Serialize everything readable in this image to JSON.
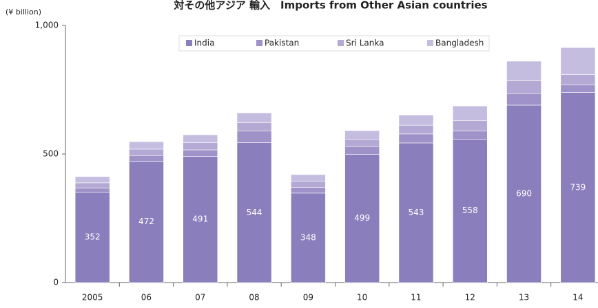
{
  "chart_data": {
    "type": "stacked_bar",
    "title": "対その他アジア 輸入　Imports from Other Asian countries",
    "y_label": "(¥ billion)",
    "categories": [
      "2005",
      "06",
      "07",
      "08",
      "09",
      "10",
      "11",
      "12",
      "13",
      "14"
    ],
    "series": [
      {
        "name": "India",
        "color": "#8b7ebc",
        "labels": true,
        "values": [
          352,
          472,
          491,
          544,
          348,
          499,
          543,
          558,
          690,
          739
        ]
      },
      {
        "name": "Pakistan",
        "color": "#9e92c8",
        "values": [
          16,
          22,
          25,
          45,
          22,
          30,
          35,
          32,
          45,
          30
        ]
      },
      {
        "name": "Sri Lanka",
        "color": "#b3a9d4",
        "values": [
          20,
          25,
          28,
          33,
          24,
          28,
          34,
          40,
          50,
          40
        ]
      },
      {
        "name": "Bangladesh",
        "color": "#c5bde0",
        "values": [
          24,
          29,
          31,
          38,
          26,
          34,
          40,
          57,
          76,
          105
        ]
      }
    ],
    "ylim": [
      0,
      1000
    ],
    "yticks": [
      0,
      500,
      {
        "value": 1000,
        "label": "1,000"
      }
    ],
    "legend": "top"
  }
}
